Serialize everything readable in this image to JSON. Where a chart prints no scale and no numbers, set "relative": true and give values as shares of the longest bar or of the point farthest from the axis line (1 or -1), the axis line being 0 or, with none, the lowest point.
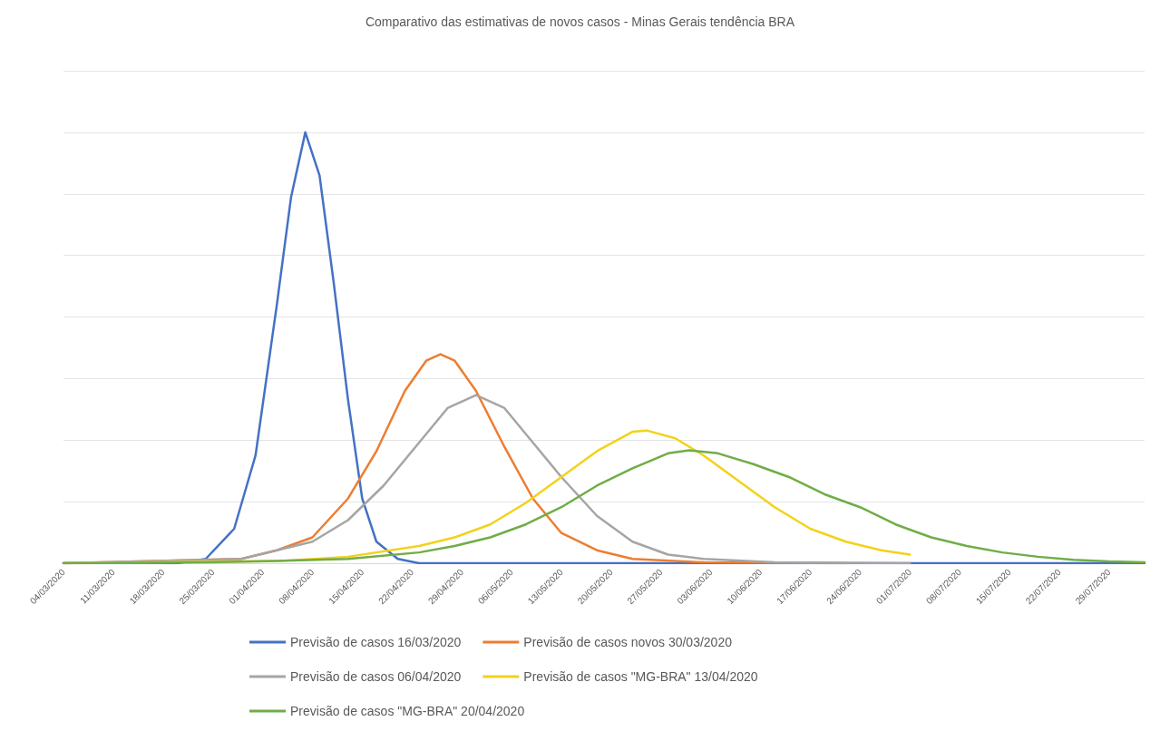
{
  "chart_data": {
    "type": "line",
    "title": "Comparativo das estimativas de novos casos - Minas Gerais tendência BRA",
    "relative": true,
    "grid": "y",
    "legend": "bottom",
    "marker": "none",
    "line_style": "solid",
    "xlim": [
      "2020-03-04",
      "2020-08-03"
    ],
    "xticks": [
      {
        "value": "2020-03-04",
        "label": "04/03/2020"
      },
      {
        "value": "2020-03-11",
        "label": "11/03/2020"
      },
      {
        "value": "2020-03-18",
        "label": "18/03/2020"
      },
      {
        "value": "2020-03-25",
        "label": "25/03/2020"
      },
      {
        "value": "2020-04-01",
        "label": "01/04/2020"
      },
      {
        "value": "2020-04-08",
        "label": "08/04/2020"
      },
      {
        "value": "2020-04-15",
        "label": "15/04/2020"
      },
      {
        "value": "2020-04-22",
        "label": "22/04/2020"
      },
      {
        "value": "2020-04-29",
        "label": "29/04/2020"
      },
      {
        "value": "2020-05-06",
        "label": "06/05/2020"
      },
      {
        "value": "2020-05-13",
        "label": "13/05/2020"
      },
      {
        "value": "2020-05-20",
        "label": "20/05/2020"
      },
      {
        "value": "2020-05-27",
        "label": "27/05/2020"
      },
      {
        "value": "2020-06-03",
        "label": "03/06/2020"
      },
      {
        "value": "2020-06-10",
        "label": "10/06/2020"
      },
      {
        "value": "2020-06-17",
        "label": "17/06/2020"
      },
      {
        "value": "2020-06-24",
        "label": "24/06/2020"
      },
      {
        "value": "2020-07-01",
        "label": "01/07/2020"
      },
      {
        "value": "2020-07-08",
        "label": "08/07/2020"
      },
      {
        "value": "2020-07-15",
        "label": "15/07/2020"
      },
      {
        "value": "2020-07-22",
        "label": "22/07/2020"
      },
      {
        "value": "2020-07-29",
        "label": "29/07/2020"
      }
    ],
    "series": [
      {
        "name": "Previsão de casos 16/03/2020",
        "color": "#4472c4",
        "x": [
          "2020-03-04",
          "2020-03-20",
          "2020-03-24",
          "2020-03-28",
          "2020-03-31",
          "2020-04-03",
          "2020-04-05",
          "2020-04-07",
          "2020-04-09",
          "2020-04-11",
          "2020-04-13",
          "2020-04-15",
          "2020-04-17",
          "2020-04-20",
          "2020-04-23",
          "2020-05-03",
          "2020-08-03"
        ],
        "values": [
          0,
          0,
          0.01,
          0.08,
          0.25,
          0.6,
          0.85,
          1.0,
          0.9,
          0.65,
          0.38,
          0.15,
          0.05,
          0.01,
          0,
          0,
          0
        ]
      },
      {
        "name": "Previsão de casos novos 30/03/2020",
        "color": "#ed7d31",
        "x": [
          "2020-03-04",
          "2020-03-29",
          "2020-04-03",
          "2020-04-08",
          "2020-04-13",
          "2020-04-17",
          "2020-04-21",
          "2020-04-24",
          "2020-04-26",
          "2020-04-28",
          "2020-05-01",
          "2020-05-05",
          "2020-05-09",
          "2020-05-13",
          "2020-05-18",
          "2020-05-23",
          "2020-06-02",
          "2020-06-22"
        ],
        "values": [
          0,
          0.01,
          0.03,
          0.06,
          0.15,
          0.26,
          0.4,
          0.47,
          0.485,
          0.47,
          0.4,
          0.27,
          0.15,
          0.07,
          0.03,
          0.01,
          0.002,
          0
        ]
      },
      {
        "name": "Previsão de casos 06/04/2020",
        "color": "#a5a5a5",
        "x": [
          "2020-03-04",
          "2020-03-29",
          "2020-04-03",
          "2020-04-08",
          "2020-04-13",
          "2020-04-18",
          "2020-04-23",
          "2020-04-27",
          "2020-05-01",
          "2020-05-05",
          "2020-05-09",
          "2020-05-13",
          "2020-05-18",
          "2020-05-23",
          "2020-05-28",
          "2020-06-02",
          "2020-06-12",
          "2020-07-01"
        ],
        "values": [
          0,
          0.01,
          0.03,
          0.05,
          0.1,
          0.18,
          0.28,
          0.36,
          0.39,
          0.36,
          0.28,
          0.2,
          0.11,
          0.05,
          0.02,
          0.01,
          0.002,
          0
        ]
      },
      {
        "name": "Previsão de casos \"MG-BRA\" 13/04/2020",
        "color": "#f2d21b",
        "x": [
          "2020-03-04",
          "2020-04-03",
          "2020-04-13",
          "2020-04-23",
          "2020-04-28",
          "2020-05-03",
          "2020-05-08",
          "2020-05-13",
          "2020-05-18",
          "2020-05-23",
          "2020-05-25",
          "2020-05-29",
          "2020-06-02",
          "2020-06-07",
          "2020-06-12",
          "2020-06-17",
          "2020-06-22",
          "2020-06-27",
          "2020-07-01"
        ],
        "values": [
          0,
          0.005,
          0.015,
          0.04,
          0.06,
          0.09,
          0.14,
          0.2,
          0.26,
          0.305,
          0.308,
          0.29,
          0.25,
          0.19,
          0.13,
          0.08,
          0.05,
          0.03,
          0.02
        ]
      },
      {
        "name": "Previsão de casos \"MG-BRA\" 20/04/2020",
        "color": "#70ad47",
        "x": [
          "2020-03-04",
          "2020-03-24",
          "2020-04-03",
          "2020-04-13",
          "2020-04-23",
          "2020-04-28",
          "2020-05-03",
          "2020-05-08",
          "2020-05-13",
          "2020-05-18",
          "2020-05-23",
          "2020-05-28",
          "2020-05-31",
          "2020-06-04",
          "2020-06-09",
          "2020-06-14",
          "2020-06-19",
          "2020-06-24",
          "2020-06-29",
          "2020-07-04",
          "2020-07-09",
          "2020-07-14",
          "2020-07-19",
          "2020-07-24",
          "2020-07-29",
          "2020-08-03"
        ],
        "values": [
          0,
          0.002,
          0.005,
          0.01,
          0.025,
          0.04,
          0.06,
          0.09,
          0.13,
          0.18,
          0.22,
          0.255,
          0.262,
          0.255,
          0.23,
          0.2,
          0.16,
          0.13,
          0.09,
          0.06,
          0.04,
          0.025,
          0.015,
          0.008,
          0.004,
          0.002
        ]
      }
    ]
  }
}
